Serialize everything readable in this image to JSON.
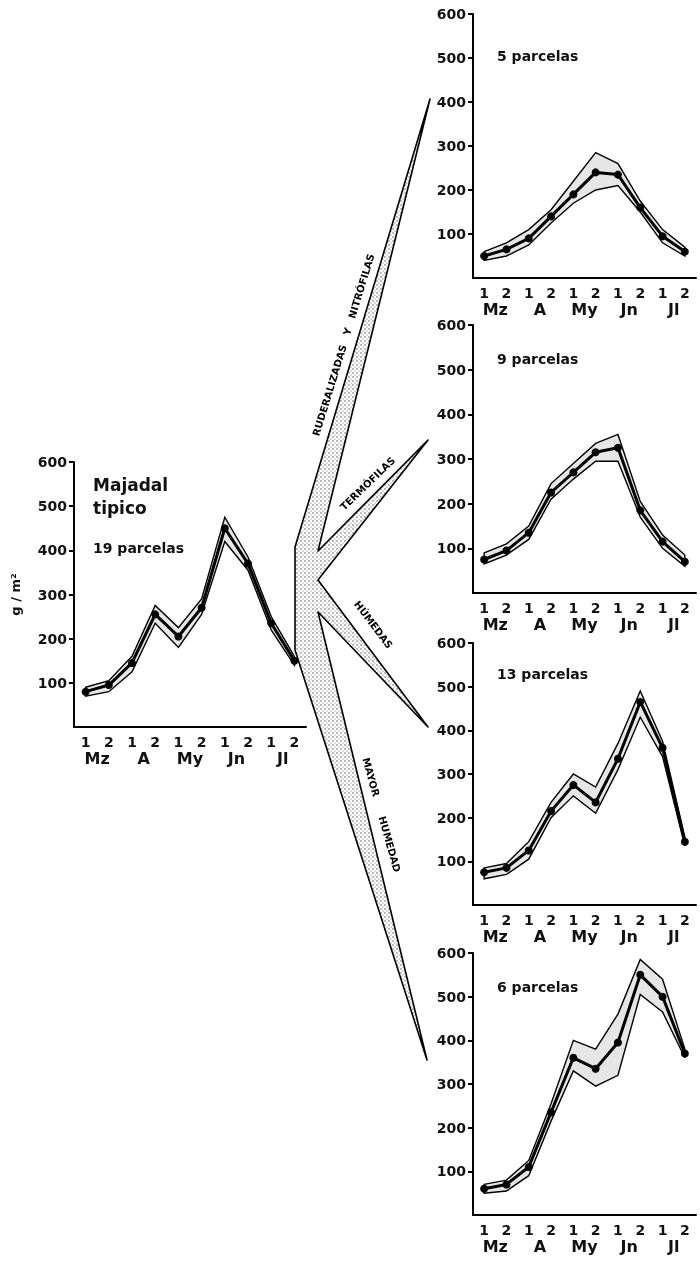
{
  "chart_data": [
    {
      "type": "line",
      "title": "Majadal tipico",
      "subtitle": "19 parcelas",
      "ylabel": "g / m²",
      "categories": [
        "1",
        "2",
        "1",
        "2",
        "1",
        "2",
        "1",
        "2",
        "1",
        "2"
      ],
      "ylim": [
        0,
        600
      ],
      "yticks": [
        100,
        200,
        300,
        400,
        500,
        600
      ],
      "marker": "circle",
      "annotations": [
        "Mz",
        "A",
        "My",
        "Jn",
        "Jl"
      ],
      "series": [
        {
          "color": "#000000",
          "values": [
            80,
            95,
            145,
            255,
            205,
            270,
            450,
            370,
            235,
            150
          ],
          "lower": [
            70,
            80,
            125,
            235,
            180,
            255,
            420,
            355,
            220,
            140
          ],
          "upper": [
            90,
            105,
            160,
            275,
            225,
            290,
            475,
            385,
            250,
            160
          ]
        }
      ]
    },
    {
      "type": "other",
      "annotations": [
        "RUDERALIZADAS   Y   NITRÓFILAS",
        "TERMÓFILAS",
        "HÚMEDAS",
        "MAYOR      HUMEDAD"
      ]
    },
    {
      "type": "line",
      "title": "5 parcelas",
      "categories": [
        "1",
        "2",
        "1",
        "2",
        "1",
        "2",
        "1",
        "2",
        "1",
        "2"
      ],
      "ylim": [
        0,
        600
      ],
      "yticks": [
        100,
        200,
        300,
        400,
        500,
        600
      ],
      "marker": "circle",
      "annotations": [
        "Mz",
        "A",
        "My",
        "Jn",
        "Jl"
      ],
      "series": [
        {
          "color": "#000000",
          "values": [
            50,
            65,
            90,
            140,
            190,
            240,
            235,
            160,
            95,
            60
          ],
          "lower": [
            40,
            50,
            75,
            125,
            170,
            200,
            210,
            150,
            80,
            50
          ],
          "upper": [
            60,
            80,
            110,
            155,
            220,
            285,
            260,
            175,
            110,
            70
          ]
        }
      ]
    },
    {
      "type": "line",
      "title": "9 parcelas",
      "categories": [
        "1",
        "2",
        "1",
        "2",
        "1",
        "2",
        "1",
        "2",
        "1",
        "2"
      ],
      "ylim": [
        0,
        600
      ],
      "yticks": [
        100,
        200,
        300,
        400,
        500,
        600
      ],
      "marker": "circle",
      "annotations": [
        "Mz",
        "A",
        "My",
        "Jn",
        "Jl"
      ],
      "series": [
        {
          "color": "#000000",
          "values": [
            75,
            95,
            135,
            225,
            270,
            315,
            325,
            185,
            115,
            70
          ],
          "lower": [
            65,
            85,
            120,
            210,
            255,
            295,
            295,
            170,
            100,
            60
          ],
          "upper": [
            90,
            110,
            150,
            245,
            290,
            335,
            355,
            205,
            130,
            85
          ]
        }
      ]
    },
    {
      "type": "line",
      "title": "13 parcelas",
      "categories": [
        "1",
        "2",
        "1",
        "2",
        "1",
        "2",
        "1",
        "2",
        "1",
        "2"
      ],
      "ylim": [
        0,
        600
      ],
      "yticks": [
        100,
        200,
        300,
        400,
        500,
        600
      ],
      "marker": "circle",
      "annotations": [
        "Mz",
        "A",
        "My",
        "Jn",
        "Jl"
      ],
      "series": [
        {
          "color": "#000000",
          "values": [
            75,
            85,
            125,
            215,
            275,
            235,
            335,
            465,
            360,
            145
          ],
          "lower": [
            60,
            70,
            105,
            200,
            250,
            210,
            310,
            430,
            340,
            135
          ],
          "upper": [
            85,
            95,
            145,
            235,
            300,
            270,
            370,
            490,
            375,
            155
          ]
        }
      ]
    },
    {
      "type": "line",
      "title": "6 parcelas",
      "categories": [
        "1",
        "2",
        "1",
        "2",
        "1",
        "2",
        "1",
        "2",
        "1",
        "2"
      ],
      "ylim": [
        0,
        600
      ],
      "yticks": [
        100,
        200,
        300,
        400,
        500,
        600
      ],
      "marker": "circle",
      "annotations": [
        "Mz",
        "A",
        "My",
        "Jn",
        "Jl"
      ],
      "series": [
        {
          "color": "#000000",
          "values": [
            60,
            70,
            110,
            235,
            360,
            335,
            395,
            550,
            500,
            370
          ],
          "lower": [
            50,
            55,
            90,
            215,
            330,
            295,
            320,
            505,
            465,
            360
          ],
          "upper": [
            70,
            80,
            125,
            255,
            400,
            380,
            460,
            585,
            540,
            380
          ]
        }
      ]
    }
  ]
}
